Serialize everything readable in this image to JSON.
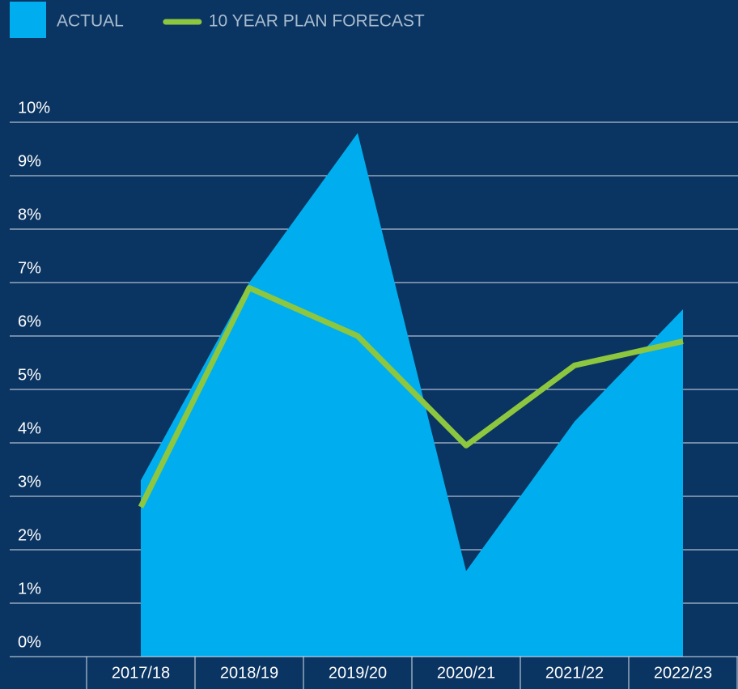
{
  "chart_data": {
    "type": "area_line",
    "categories": [
      "2017/18",
      "2018/19",
      "2019/20",
      "2020/21",
      "2021/22",
      "2022/23"
    ],
    "series": [
      {
        "name": "ACTUAL",
        "color": "#00aeef",
        "kind": "area",
        "values": [
          3.3,
          7.0,
          9.8,
          1.6,
          4.4,
          6.5
        ]
      },
      {
        "name": "10 YEAR PLAN FORECAST",
        "color": "#8dc63f",
        "kind": "line",
        "values": [
          2.8,
          6.9,
          6.0,
          3.95,
          5.45,
          5.9
        ]
      }
    ],
    "ylim": [
      0,
      10
    ],
    "yticks": [
      {
        "value": 0,
        "label": "0%"
      },
      {
        "value": 1,
        "label": "1%"
      },
      {
        "value": 2,
        "label": "2%"
      },
      {
        "value": 3,
        "label": "3%"
      },
      {
        "value": 4,
        "label": "4%"
      },
      {
        "value": 5,
        "label": "5%"
      },
      {
        "value": 6,
        "label": "6%"
      },
      {
        "value": 7,
        "label": "7%"
      },
      {
        "value": 8,
        "label": "8%"
      },
      {
        "value": 9,
        "label": "9%"
      },
      {
        "value": 10,
        "label": "10%"
      }
    ],
    "grid": true
  }
}
